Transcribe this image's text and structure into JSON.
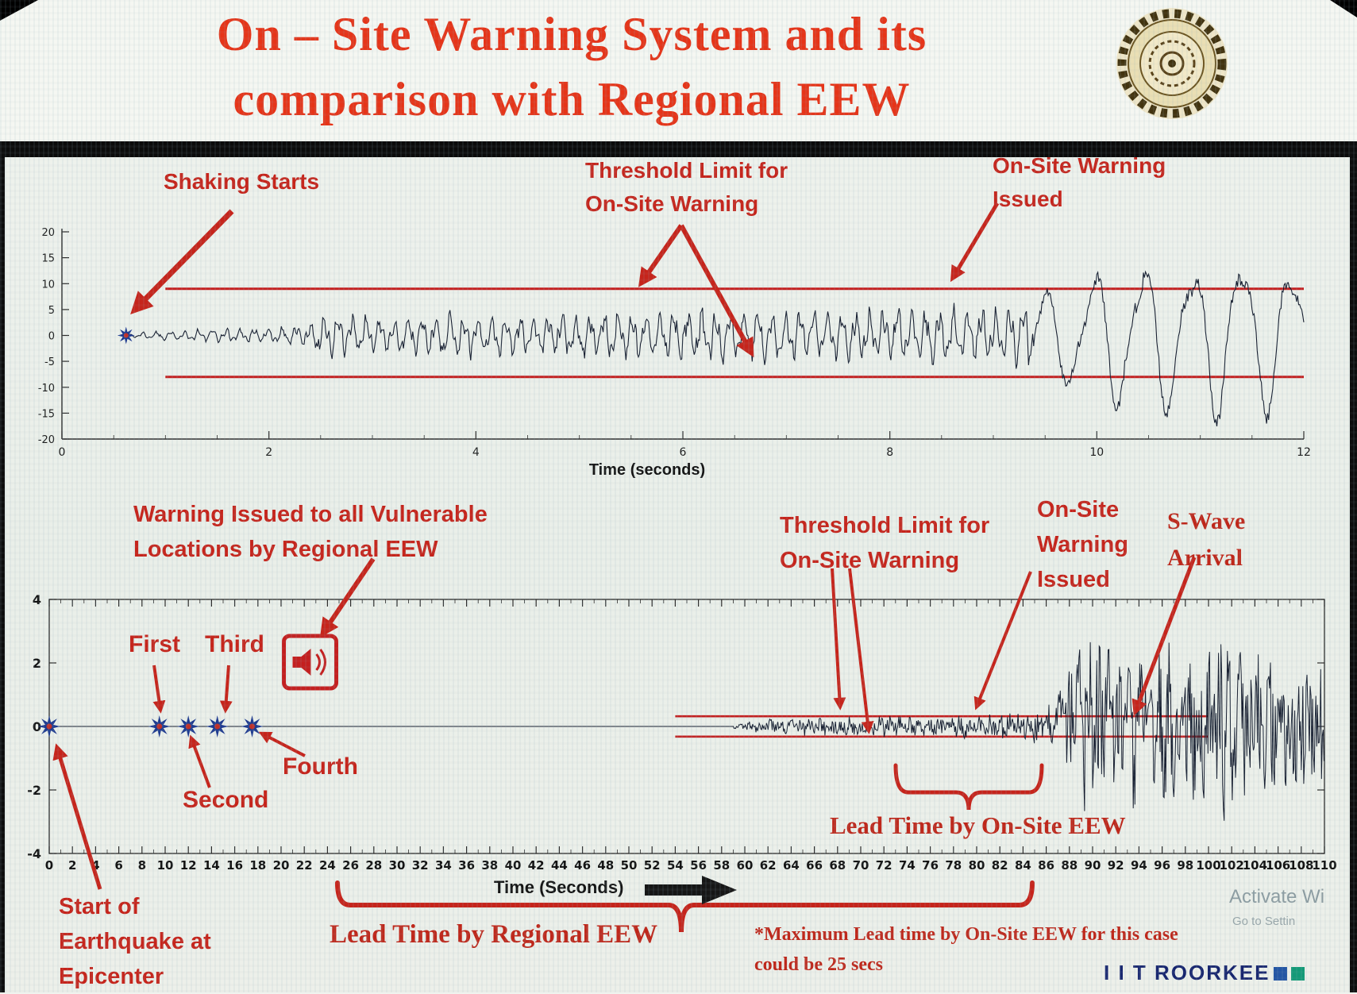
{
  "header": {
    "title_line1": "On – Site Warning System and its",
    "title_line2": "comparison with Regional EEW",
    "logo_name": "iit-roorkee-seal"
  },
  "top_chart": {
    "annotations": {
      "shaking_starts": "Shaking Starts",
      "threshold_line1": "Threshold Limit for",
      "threshold_line2": "On-Site Warning",
      "warning_line1": "On-Site Warning",
      "warning_line2": "Issued"
    }
  },
  "bottom_chart": {
    "annotations": {
      "regional_line1": "Warning Issued to all Vulnerable",
      "regional_line2": "Locations by Regional EEW",
      "threshold_line1": "Threshold Limit for",
      "threshold_line2": "On-Site Warning",
      "onsite_line1": "On-Site",
      "onsite_line2": "Warning",
      "onsite_line3": "Issued",
      "swave_line1": "S-Wave",
      "swave_line2": "Arrival",
      "first": "First",
      "second": "Second",
      "third": "Third",
      "fourth": "Fourth",
      "start_line1": "Start of",
      "start_line2": "Earthquake at",
      "start_line3": "Epicenter",
      "lead_regional": "Lead Time by Regional EEW",
      "lead_onsite": "Lead Time by On-Site EEW",
      "footnote_line1": "*Maximum Lead time by On-Site EEW for this case",
      "footnote_line2": "could be 25 secs"
    }
  },
  "footer": {
    "brand": "I I T ROORKEE",
    "watermark_line1": "Activate Wi",
    "watermark_line2": "Go to Settin"
  },
  "colors": {
    "annotation_red": "#c6241b",
    "title_red": "#e63418",
    "threshold_red": "#c41f1f",
    "lead_red": "#bf2619",
    "waveform_ink": "#141c2e",
    "star_blue": "#1e3a8f",
    "star_center_red": "#c03028",
    "brand_navy": "#16246e",
    "brand_square_blue": "#2456a4",
    "brand_square_green": "#149a77",
    "watermark_gray": "#7c8e95"
  },
  "chart_data": [
    {
      "type": "line",
      "name": "on-site-seismogram",
      "xlabel": "Time (seconds)",
      "xlim": [
        0,
        12
      ],
      "ylim": [
        -20,
        20
      ],
      "xticks": [
        0,
        2,
        4,
        6,
        8,
        10,
        12
      ],
      "yticks": [
        20,
        15,
        10,
        5,
        0,
        -5,
        -10,
        -15,
        -20
      ],
      "grid": false,
      "threshold_upper": 9,
      "threshold_lower": -8,
      "threshold_start_x": 1.0,
      "wave_start_x": 0.62,
      "shaking_start_marker": {
        "x": 0.62,
        "y": 0
      },
      "envelope": [
        [
          0.62,
          0.3
        ],
        [
          1.0,
          1.1
        ],
        [
          2.0,
          1.6
        ],
        [
          2.35,
          2.2
        ],
        [
          2.55,
          5.2
        ],
        [
          3.0,
          3.8
        ],
        [
          3.8,
          4.6
        ],
        [
          4.6,
          4.0
        ],
        [
          5.4,
          5.0
        ],
        [
          6.2,
          5.6
        ],
        [
          7.0,
          5.0
        ],
        [
          7.8,
          5.3
        ],
        [
          8.6,
          5.7
        ],
        [
          9.2,
          6.4
        ],
        [
          9.55,
          9.0
        ],
        [
          10.0,
          12.5
        ],
        [
          10.5,
          15.5
        ],
        [
          10.9,
          13.5
        ],
        [
          11.3,
          17.0
        ],
        [
          11.7,
          14.5
        ],
        [
          12.0,
          13.5
        ]
      ]
    },
    {
      "type": "line",
      "name": "regional-comparison-seismogram",
      "xlabel": "Time (Seconds)",
      "xlim": [
        0,
        110
      ],
      "ylim": [
        -4,
        4
      ],
      "xticks": [
        0,
        2,
        4,
        6,
        8,
        10,
        12,
        14,
        16,
        18,
        20,
        22,
        24,
        26,
        28,
        30,
        32,
        34,
        36,
        38,
        40,
        42,
        44,
        46,
        48,
        50,
        52,
        54,
        56,
        58,
        60,
        62,
        64,
        66,
        68,
        70,
        72,
        74,
        76,
        78,
        80,
        82,
        84,
        86,
        88,
        90,
        92,
        94,
        96,
        98,
        100,
        102,
        104,
        106,
        108,
        110
      ],
      "yticks": [
        4,
        2,
        0,
        -2,
        -4
      ],
      "grid": false,
      "threshold_upper": 0.32,
      "threshold_lower": -0.32,
      "threshold_x_range": [
        54,
        100
      ],
      "p_wave_start_x": 59,
      "s_wave_start_x": 87.5,
      "station_trigger_markers": [
        0,
        9.5,
        12,
        14.5,
        17.5
      ],
      "regional_warning_icon_x": 22.5,
      "envelope": [
        [
          59,
          0.06
        ],
        [
          61,
          0.18
        ],
        [
          64,
          0.28
        ],
        [
          68,
          0.3
        ],
        [
          72,
          0.32
        ],
        [
          76,
          0.3
        ],
        [
          80,
          0.38
        ],
        [
          84,
          0.45
        ],
        [
          86,
          0.55
        ],
        [
          87.5,
          1.4
        ],
        [
          89,
          2.6
        ],
        [
          90.5,
          3.0
        ],
        [
          92,
          2.1
        ],
        [
          93.5,
          2.7
        ],
        [
          95,
          1.9
        ],
        [
          97,
          2.6
        ],
        [
          99,
          2.2
        ],
        [
          101,
          2.8
        ],
        [
          103,
          2.3
        ],
        [
          105,
          2.6
        ],
        [
          107,
          2.1
        ],
        [
          109,
          2.4
        ],
        [
          110,
          2.2
        ]
      ]
    }
  ]
}
